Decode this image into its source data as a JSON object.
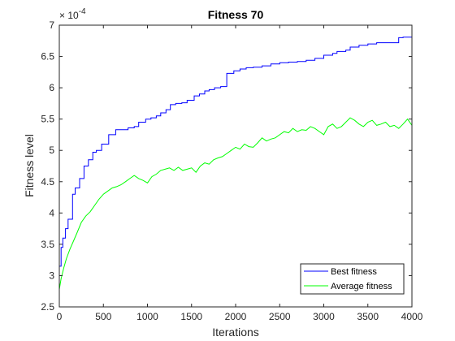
{
  "chart_data": {
    "type": "line",
    "title": "Fitness 70",
    "xlabel": "Iterations",
    "ylabel": "Fitness level",
    "xlim": [
      0,
      4000
    ],
    "ylim": [
      2.5,
      7
    ],
    "y_exponent_label": "× 10",
    "y_exponent_power": "-4",
    "xticks": [
      0,
      500,
      1000,
      1500,
      2000,
      2500,
      3000,
      3500,
      4000
    ],
    "yticks": [
      2.5,
      3,
      3.5,
      4,
      4.5,
      5,
      5.5,
      6,
      6.5,
      7
    ],
    "xtick_labels": [
      "0",
      "500",
      "1000",
      "1500",
      "2000",
      "2500",
      "3000",
      "3500",
      "4000"
    ],
    "ytick_labels": [
      "2.5",
      "3",
      "3.5",
      "4",
      "4.5",
      "5",
      "5.5",
      "6",
      "6.5",
      "7"
    ],
    "grid": false,
    "legend_position": "bottom-right",
    "series": [
      {
        "name": "Best fitness",
        "color": "#0000ff",
        "step": true,
        "x": [
          0,
          20,
          40,
          70,
          100,
          150,
          180,
          230,
          280,
          330,
          380,
          420,
          480,
          560,
          640,
          780,
          850,
          900,
          980,
          1040,
          1100,
          1150,
          1210,
          1260,
          1320,
          1390,
          1450,
          1530,
          1590,
          1650,
          1700,
          1760,
          1830,
          1900,
          1980,
          2050,
          2120,
          2200,
          2300,
          2400,
          2500,
          2600,
          2700,
          2800,
          2900,
          3000,
          3100,
          3150,
          3250,
          3300,
          3400,
          3500,
          3600,
          3700,
          3800,
          3850,
          3900,
          4000
        ],
        "y": [
          3.15,
          3.45,
          3.6,
          3.75,
          3.9,
          4.3,
          4.4,
          4.55,
          4.75,
          4.85,
          4.97,
          5.0,
          5.1,
          5.25,
          5.33,
          5.36,
          5.38,
          5.45,
          5.5,
          5.52,
          5.55,
          5.6,
          5.65,
          5.73,
          5.75,
          5.76,
          5.8,
          5.87,
          5.9,
          5.95,
          5.97,
          6.0,
          6.02,
          6.23,
          6.27,
          6.3,
          6.32,
          6.33,
          6.35,
          6.38,
          6.4,
          6.41,
          6.42,
          6.44,
          6.47,
          6.52,
          6.55,
          6.58,
          6.6,
          6.65,
          6.68,
          6.7,
          6.72,
          6.72,
          6.72,
          6.8,
          6.81,
          6.81
        ]
      },
      {
        "name": "Average fitness",
        "color": "#00ff00",
        "step": false,
        "x": [
          0,
          20,
          50,
          80,
          120,
          160,
          200,
          250,
          300,
          350,
          400,
          450,
          500,
          550,
          600,
          650,
          700,
          750,
          800,
          850,
          900,
          950,
          1000,
          1050,
          1100,
          1150,
          1200,
          1250,
          1300,
          1350,
          1400,
          1450,
          1500,
          1550,
          1600,
          1650,
          1700,
          1750,
          1800,
          1850,
          1900,
          1950,
          2000,
          2050,
          2100,
          2150,
          2200,
          2250,
          2300,
          2350,
          2400,
          2450,
          2500,
          2550,
          2600,
          2650,
          2700,
          2750,
          2800,
          2850,
          2900,
          2950,
          3000,
          3050,
          3100,
          3150,
          3200,
          3250,
          3300,
          3350,
          3400,
          3450,
          3500,
          3550,
          3600,
          3650,
          3700,
          3750,
          3800,
          3850,
          3900,
          3950,
          4000
        ],
        "y": [
          2.78,
          2.95,
          3.12,
          3.27,
          3.42,
          3.55,
          3.68,
          3.85,
          3.95,
          4.02,
          4.12,
          4.22,
          4.3,
          4.35,
          4.4,
          4.42,
          4.45,
          4.5,
          4.55,
          4.6,
          4.55,
          4.52,
          4.48,
          4.58,
          4.62,
          4.68,
          4.7,
          4.72,
          4.68,
          4.73,
          4.68,
          4.7,
          4.72,
          4.65,
          4.75,
          4.8,
          4.78,
          4.85,
          4.88,
          4.9,
          4.95,
          5.0,
          5.05,
          5.02,
          5.1,
          5.06,
          5.05,
          5.12,
          5.2,
          5.15,
          5.18,
          5.2,
          5.25,
          5.3,
          5.28,
          5.35,
          5.3,
          5.33,
          5.32,
          5.38,
          5.35,
          5.3,
          5.25,
          5.38,
          5.42,
          5.35,
          5.38,
          5.45,
          5.52,
          5.48,
          5.42,
          5.38,
          5.45,
          5.48,
          5.4,
          5.42,
          5.45,
          5.38,
          5.4,
          5.35,
          5.42,
          5.5,
          5.4
        ]
      }
    ]
  }
}
